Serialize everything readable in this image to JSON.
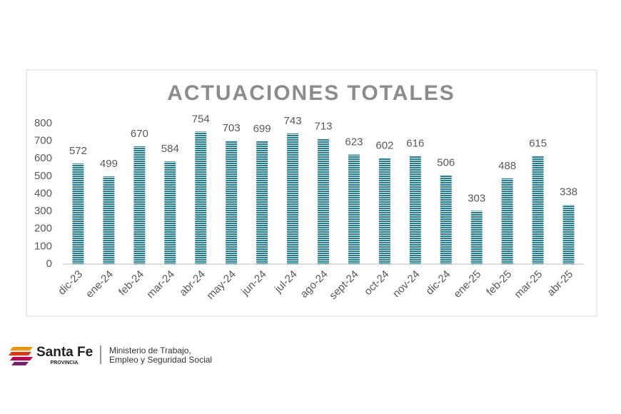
{
  "chart_data": {
    "type": "bar",
    "title": "ACTUACIONES TOTALES",
    "categories": [
      "dic-23",
      "ene-24",
      "feb-24",
      "mar-24",
      "abr-24",
      "may-24",
      "jun-24",
      "jul-24",
      "ago-24",
      "sept-24",
      "oct-24",
      "nov-24",
      "dic-24",
      "ene-25",
      "feb-25",
      "mar-25",
      "abr-25"
    ],
    "values": [
      572,
      499,
      670,
      584,
      754,
      703,
      699,
      743,
      713,
      623,
      602,
      616,
      506,
      303,
      488,
      615,
      338
    ],
    "color": "#1c7f9e",
    "ylim": [
      0,
      800
    ],
    "yticks": [
      0,
      100,
      200,
      300,
      400,
      500,
      600,
      700,
      800
    ],
    "grid": false
  },
  "footer": {
    "brand": "Santa Fe",
    "brand_sub": "PROVINCIA",
    "ministry_line1": "Ministerio de Trabajo,",
    "ministry_line2": "Empleo y Seguridad Social"
  }
}
